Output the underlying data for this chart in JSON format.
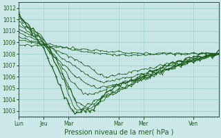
{
  "bg_color": "#cce8e8",
  "grid_color_major": "#99cccc",
  "grid_color_minor": "#b3d9d9",
  "line_color": "#1a5c1a",
  "ylim": [
    1002.5,
    1012.5
  ],
  "yticks": [
    1003,
    1004,
    1005,
    1006,
    1007,
    1008,
    1009,
    1010,
    1011,
    1012
  ],
  "xlim": [
    0,
    96
  ],
  "xlabel": "Pression niveau de la mer( hPa )",
  "xlabel_fontsize": 7,
  "xtick_positions": [
    0,
    12,
    24,
    48,
    60,
    84
  ],
  "xtick_labels": [
    "Lun",
    "Jeu",
    "Mar",
    "Mar",
    "Mer",
    "Ven"
  ],
  "ytick_fontsize": 5.5,
  "xtick_fontsize": 5.5
}
